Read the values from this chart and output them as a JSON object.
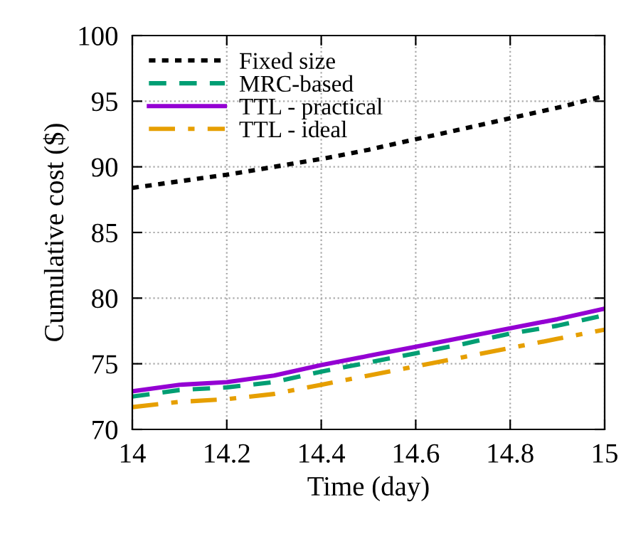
{
  "chart_data": {
    "type": "line",
    "xlabel": "Time (day)",
    "ylabel": "Cumulative cost ($)",
    "x": [
      14,
      14.1,
      14.2,
      14.3,
      14.4,
      14.5,
      14.6,
      14.7,
      14.8,
      14.9,
      15
    ],
    "series": [
      {
        "name": "Fixed size",
        "color": "#000000",
        "line_style": "dotted",
        "values": [
          88.4,
          88.9,
          89.4,
          90.0,
          90.6,
          91.3,
          92.1,
          92.9,
          93.7,
          94.5,
          95.4
        ]
      },
      {
        "name": "MRC-based",
        "color": "#009e73",
        "line_style": "dashed",
        "values": [
          72.5,
          73.0,
          73.2,
          73.6,
          74.4,
          75.1,
          75.8,
          76.5,
          77.3,
          77.9,
          78.7
        ]
      },
      {
        "name": "TTL - practical",
        "color": "#9400d3",
        "line_style": "solid",
        "values": [
          72.9,
          73.4,
          73.6,
          74.1,
          74.9,
          75.6,
          76.3,
          77.0,
          77.7,
          78.4,
          79.2
        ]
      },
      {
        "name": "TTL - ideal",
        "color": "#e69f00",
        "line_style": "dashdot",
        "values": [
          71.7,
          72.1,
          72.3,
          72.7,
          73.4,
          74.1,
          74.8,
          75.5,
          76.2,
          76.9,
          77.6
        ]
      }
    ],
    "xlim": [
      14,
      15
    ],
    "xticks": [
      14,
      14.2,
      14.4,
      14.6,
      14.8,
      15
    ],
    "ylim": [
      70,
      100
    ],
    "yticks": [
      70,
      75,
      80,
      85,
      90,
      95,
      100
    ],
    "grid": true,
    "legend": "top left"
  }
}
